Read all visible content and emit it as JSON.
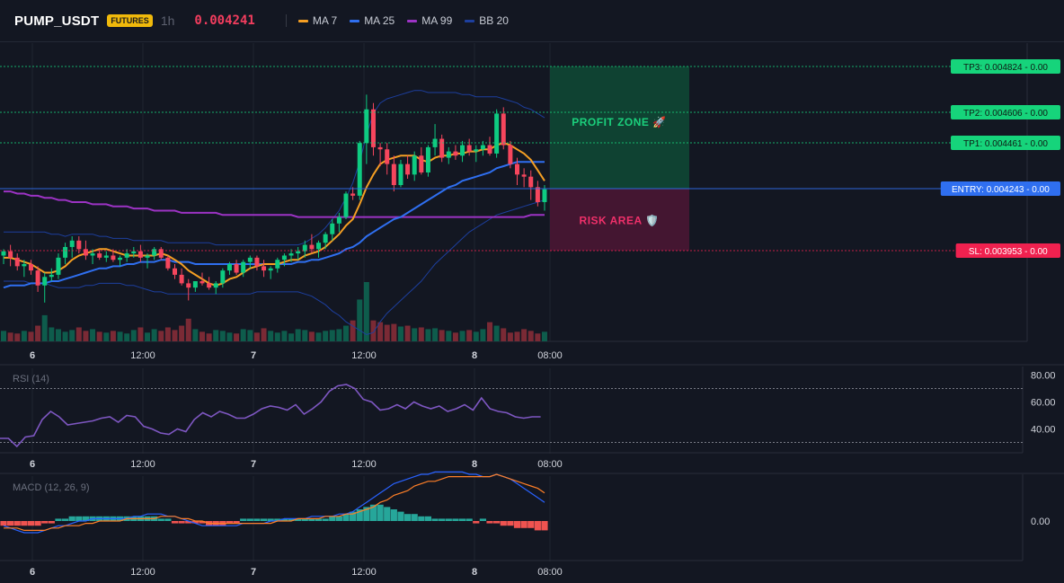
{
  "header": {
    "symbol": "PUMP_USDT",
    "badge": "FUTURES",
    "timeframe": "1h",
    "price": "0.004241",
    "legend": [
      {
        "label": "MA 7",
        "color": "#f59f23"
      },
      {
        "label": "MA 25",
        "color": "#2f6ff0"
      },
      {
        "label": "MA 99",
        "color": "#9c33c4"
      },
      {
        "label": "BB 20",
        "color": "#1d3f9e"
      }
    ]
  },
  "colors": {
    "background": "#131722",
    "up": "#0ecb81",
    "down": "#f6465d",
    "up_volume": "#0e5c4c",
    "down_volume": "#7a2a35",
    "rsi": "#7e57c2",
    "macd": "#2962ff",
    "signal": "#ff7f27",
    "hist_up": "#26a69a",
    "hist_down": "#ef5350",
    "tp": "#16d47b",
    "entry": "#2f6ff0",
    "sl": "#f0214f"
  },
  "levels": [
    {
      "id": "tp3",
      "label": "TP3: 0.004824 - 0.00",
      "value": 0.004824,
      "kind": "tp"
    },
    {
      "id": "tp2",
      "label": "TP2: 0.004606 - 0.00",
      "value": 0.004606,
      "kind": "tp"
    },
    {
      "id": "tp1",
      "label": "TP1: 0.004461 - 0.00",
      "value": 0.004461,
      "kind": "tp"
    },
    {
      "id": "entry",
      "label": "ENTRY: 0.004243 - 0.00",
      "value": 0.004243,
      "kind": "entry"
    },
    {
      "id": "sl",
      "label": "SL: 0.003953 - 0.00",
      "value": 0.003953,
      "kind": "sl"
    }
  ],
  "zones": {
    "profit_label": "PROFIT ZONE 🚀",
    "risk_label": "RISK AREA 🛡️"
  },
  "time_axis": [
    "6",
    "12:00",
    "7",
    "12:00",
    "8",
    "08:00"
  ],
  "rsi": {
    "title": "RSI (14)",
    "ticks": [
      "80.00",
      "60.00",
      "40.00"
    ],
    "tick_values": [
      80,
      60,
      40
    ],
    "upper": 70,
    "lower": 30,
    "values": [
      33,
      33,
      27,
      34,
      35,
      47,
      53,
      49,
      43,
      44,
      45,
      46,
      48,
      49,
      45,
      50,
      49,
      42,
      40,
      37,
      36,
      40,
      38,
      47,
      52,
      49,
      53,
      51,
      48,
      48,
      51,
      55,
      57,
      56,
      54,
      58,
      51,
      55,
      60,
      68,
      72,
      73,
      70,
      62,
      60,
      54,
      55,
      58,
      55,
      60,
      57,
      55,
      57,
      53,
      55,
      58,
      54,
      63,
      55,
      53,
      52,
      49,
      48,
      49,
      49
    ]
  },
  "macd": {
    "title": "MACD (12, 26, 9)",
    "tick": "0.00"
  },
  "chart_data": {
    "type": "candlestick",
    "symbol": "PUMP_USDT",
    "interval": "1h",
    "last_price": 0.004241,
    "candles": [
      [
        0.00393,
        0.00396,
        0.00389,
        0.00395
      ],
      [
        0.00395,
        0.00398,
        0.00388,
        0.00392
      ],
      [
        0.00392,
        0.00394,
        0.00386,
        0.00388
      ],
      [
        0.00388,
        0.00391,
        0.00383,
        0.00389
      ],
      [
        0.00389,
        0.00391,
        0.00384,
        0.00386
      ],
      [
        0.00386,
        0.00388,
        0.00376,
        0.00379
      ],
      [
        0.00379,
        0.00385,
        0.00371,
        0.00383
      ],
      [
        0.00383,
        0.00387,
        0.00381,
        0.00384
      ],
      [
        0.00384,
        0.00394,
        0.00382,
        0.00392
      ],
      [
        0.00392,
        0.00399,
        0.00389,
        0.00397
      ],
      [
        0.00397,
        0.00402,
        0.00392,
        0.004
      ],
      [
        0.004,
        0.00402,
        0.00394,
        0.00396
      ],
      [
        0.00396,
        0.004,
        0.00391,
        0.00393
      ],
      [
        0.00393,
        0.00396,
        0.00389,
        0.00394
      ],
      [
        0.00394,
        0.00396,
        0.00391,
        0.00392
      ],
      [
        0.00392,
        0.00395,
        0.0039,
        0.00393
      ],
      [
        0.00393,
        0.00396,
        0.0039,
        0.00391
      ],
      [
        0.00391,
        0.00393,
        0.00388,
        0.00392
      ],
      [
        0.00392,
        0.00396,
        0.0039,
        0.00394
      ],
      [
        0.00394,
        0.00397,
        0.00392,
        0.00395
      ],
      [
        0.00395,
        0.00398,
        0.0039,
        0.00392
      ],
      [
        0.00392,
        0.00394,
        0.00387,
        0.00393
      ],
      [
        0.00393,
        0.00397,
        0.00391,
        0.00396
      ],
      [
        0.00396,
        0.00397,
        0.00391,
        0.00392
      ],
      [
        0.00392,
        0.00393,
        0.00386,
        0.00387
      ],
      [
        0.00387,
        0.00389,
        0.00382,
        0.00384
      ],
      [
        0.00384,
        0.00387,
        0.00379,
        0.0038
      ],
      [
        0.0038,
        0.00382,
        0.00372,
        0.00378
      ],
      [
        0.00378,
        0.00381,
        0.00376,
        0.00381
      ],
      [
        0.00381,
        0.00385,
        0.00379,
        0.0038
      ],
      [
        0.0038,
        0.00383,
        0.00377,
        0.00378
      ],
      [
        0.00378,
        0.00381,
        0.00375,
        0.0038
      ],
      [
        0.0038,
        0.00387,
        0.00378,
        0.00386
      ],
      [
        0.00386,
        0.0039,
        0.00384,
        0.00389
      ],
      [
        0.00389,
        0.00391,
        0.00384,
        0.00385
      ],
      [
        0.00385,
        0.00391,
        0.00383,
        0.0039
      ],
      [
        0.0039,
        0.00393,
        0.00387,
        0.00392
      ],
      [
        0.00392,
        0.00393,
        0.00386,
        0.00388
      ],
      [
        0.00388,
        0.00391,
        0.00383,
        0.00386
      ],
      [
        0.00386,
        0.00388,
        0.00382,
        0.00387
      ],
      [
        0.00387,
        0.00392,
        0.00385,
        0.00391
      ],
      [
        0.00391,
        0.00394,
        0.00388,
        0.00393
      ],
      [
        0.00393,
        0.00396,
        0.0039,
        0.00394
      ],
      [
        0.00394,
        0.00397,
        0.00391,
        0.00395
      ],
      [
        0.00395,
        0.004,
        0.00392,
        0.00398
      ],
      [
        0.00398,
        0.00403,
        0.00394,
        0.00396
      ],
      [
        0.00396,
        0.004,
        0.00392,
        0.00399
      ],
      [
        0.00399,
        0.00404,
        0.00396,
        0.00403
      ],
      [
        0.00403,
        0.0041,
        0.004,
        0.00408
      ],
      [
        0.00408,
        0.00413,
        0.00404,
        0.00411
      ],
      [
        0.00411,
        0.00423,
        0.0041,
        0.00422
      ],
      [
        0.00422,
        0.00425,
        0.00419,
        0.00421
      ],
      [
        0.00421,
        0.00447,
        0.00419,
        0.00446
      ],
      [
        0.00446,
        0.00469,
        0.00436,
        0.00462
      ],
      [
        0.00462,
        0.00465,
        0.0044,
        0.00444
      ],
      [
        0.00444,
        0.00446,
        0.00435,
        0.00443
      ],
      [
        0.00443,
        0.00446,
        0.00431,
        0.00436
      ],
      [
        0.00436,
        0.0044,
        0.00423,
        0.00426
      ],
      [
        0.00426,
        0.00438,
        0.00425,
        0.00436
      ],
      [
        0.00436,
        0.0044,
        0.00429,
        0.00431
      ],
      [
        0.00431,
        0.00442,
        0.00428,
        0.0044
      ],
      [
        0.0044,
        0.00444,
        0.00431,
        0.00432
      ],
      [
        0.00432,
        0.00445,
        0.0043,
        0.00444
      ],
      [
        0.00444,
        0.00455,
        0.0044,
        0.00448
      ],
      [
        0.00448,
        0.0045,
        0.00437,
        0.00439
      ],
      [
        0.00439,
        0.00444,
        0.00436,
        0.00442
      ],
      [
        0.00442,
        0.00445,
        0.00438,
        0.0044
      ],
      [
        0.0044,
        0.00447,
        0.00437,
        0.00445
      ],
      [
        0.00445,
        0.00448,
        0.0044,
        0.00442
      ],
      [
        0.00442,
        0.00445,
        0.00437,
        0.00443
      ],
      [
        0.00443,
        0.00447,
        0.0044,
        0.00445
      ],
      [
        0.00445,
        0.00449,
        0.0044,
        0.00441
      ],
      [
        0.00441,
        0.00462,
        0.00439,
        0.0046
      ],
      [
        0.0046,
        0.00463,
        0.00443,
        0.00445
      ],
      [
        0.00445,
        0.00447,
        0.00434,
        0.00436
      ],
      [
        0.00436,
        0.00439,
        0.00426,
        0.00431
      ],
      [
        0.00431,
        0.00434,
        0.00425,
        0.0043
      ],
      [
        0.0043,
        0.00433,
        0.00419,
        0.00425
      ],
      [
        0.00425,
        0.00428,
        0.00416,
        0.00418
      ],
      [
        0.00418,
        0.00426,
        0.00414,
        0.00424
      ]
    ],
    "volume": [
      12,
      10,
      9,
      12,
      11,
      18,
      30,
      16,
      14,
      11,
      13,
      16,
      12,
      14,
      11,
      10,
      12,
      11,
      9,
      13,
      16,
      10,
      14,
      12,
      16,
      13,
      18,
      26,
      14,
      11,
      9,
      13,
      12,
      10,
      9,
      14,
      13,
      10,
      15,
      12,
      10,
      12,
      9,
      14,
      13,
      11,
      10,
      12,
      13,
      14,
      18,
      24,
      48,
      68,
      24,
      22,
      19,
      20,
      17,
      18,
      15,
      16,
      14,
      15,
      13,
      12,
      10,
      12,
      13,
      11,
      14,
      22,
      18,
      15,
      10,
      11,
      14,
      12,
      9,
      11
    ],
    "ma7": [
      0.00392,
      0.00392,
      0.00391,
      0.0039,
      0.00389,
      0.00387,
      0.00385,
      0.00385,
      0.00386,
      0.00388,
      0.00391,
      0.00393,
      0.00394,
      0.00395,
      0.00396,
      0.00396,
      0.00395,
      0.00394,
      0.00393,
      0.00393,
      0.00393,
      0.00393,
      0.00393,
      0.00394,
      0.00393,
      0.00391,
      0.00389,
      0.00386,
      0.00384,
      0.00382,
      0.0038,
      0.00379,
      0.0038,
      0.00382,
      0.00383,
      0.00385,
      0.00387,
      0.00388,
      0.00389,
      0.00389,
      0.00389,
      0.0039,
      0.00391,
      0.00391,
      0.00393,
      0.00394,
      0.00395,
      0.00397,
      0.004,
      0.00403,
      0.00407,
      0.0041,
      0.00417,
      0.00425,
      0.00431,
      0.00436,
      0.00438,
      0.00439,
      0.0044,
      0.0044,
      0.0044,
      0.00438,
      0.00437,
      0.00439,
      0.0044,
      0.0044,
      0.00441,
      0.00441,
      0.00442,
      0.00442,
      0.00443,
      0.00443,
      0.00445,
      0.00446,
      0.00445,
      0.00443,
      0.00441,
      0.00438,
      0.00433,
      0.00428
    ],
    "ma25": [
      0.00378,
      0.00379,
      0.00379,
      0.00379,
      0.0038,
      0.0038,
      0.0038,
      0.00381,
      0.00381,
      0.00382,
      0.00383,
      0.00384,
      0.00385,
      0.00386,
      0.00387,
      0.00387,
      0.00388,
      0.00388,
      0.00389,
      0.00389,
      0.0039,
      0.0039,
      0.0039,
      0.00391,
      0.00391,
      0.0039,
      0.0039,
      0.0039,
      0.00389,
      0.00389,
      0.00389,
      0.00389,
      0.00389,
      0.00389,
      0.00389,
      0.00389,
      0.00389,
      0.00389,
      0.00389,
      0.00389,
      0.00389,
      0.00389,
      0.00389,
      0.0039,
      0.0039,
      0.00391,
      0.00391,
      0.00392,
      0.00393,
      0.00394,
      0.00396,
      0.00397,
      0.00399,
      0.00402,
      0.00404,
      0.00406,
      0.00408,
      0.0041,
      0.00411,
      0.00413,
      0.00415,
      0.00417,
      0.00419,
      0.00421,
      0.00423,
      0.00425,
      0.00426,
      0.00428,
      0.00429,
      0.0043,
      0.00431,
      0.00432,
      0.00434,
      0.00435,
      0.00436,
      0.00437,
      0.00437,
      0.00437,
      0.00437,
      0.00437
    ],
    "ma99": [
      0.00423,
      0.00423,
      0.00422,
      0.00422,
      0.00421,
      0.00421,
      0.0042,
      0.0042,
      0.00419,
      0.00419,
      0.00418,
      0.00418,
      0.00418,
      0.00417,
      0.00417,
      0.00417,
      0.00416,
      0.00416,
      0.00416,
      0.00415,
      0.00415,
      0.00415,
      0.00414,
      0.00414,
      0.00414,
      0.00414,
      0.00413,
      0.00413,
      0.00413,
      0.00413,
      0.00413,
      0.00413,
      0.00412,
      0.00412,
      0.00412,
      0.00412,
      0.00412,
      0.00412,
      0.00412,
      0.00412,
      0.00412,
      0.00412,
      0.00412,
      0.00411,
      0.00411,
      0.00411,
      0.00411,
      0.00411,
      0.00411,
      0.00411,
      0.00411,
      0.00411,
      0.00411,
      0.00411,
      0.00411,
      0.00411,
      0.00411,
      0.00411,
      0.00411,
      0.00411,
      0.00411,
      0.00411,
      0.00411,
      0.00411,
      0.00411,
      0.00411,
      0.00411,
      0.00411,
      0.00411,
      0.00411,
      0.00411,
      0.00411,
      0.00411,
      0.00411,
      0.00411,
      0.00411,
      0.00411,
      0.00412,
      0.00412,
      0.00412
    ],
    "bb_upper": [
      0.00404,
      0.00404,
      0.00404,
      0.00404,
      0.00404,
      0.00404,
      0.00404,
      0.00403,
      0.00403,
      0.00402,
      0.00403,
      0.00403,
      0.00403,
      0.00403,
      0.00402,
      0.00402,
      0.00401,
      0.00401,
      0.00401,
      0.004,
      0.004,
      0.004,
      0.004,
      0.004,
      0.00399,
      0.00399,
      0.00399,
      0.00399,
      0.00399,
      0.00399,
      0.00399,
      0.00398,
      0.00398,
      0.00398,
      0.00398,
      0.00398,
      0.00398,
      0.00398,
      0.00398,
      0.00398,
      0.00398,
      0.00398,
      0.00398,
      0.00398,
      0.00399,
      0.00401,
      0.00403,
      0.00406,
      0.0041,
      0.00414,
      0.0042,
      0.00427,
      0.00437,
      0.0045,
      0.0046,
      0.00465,
      0.00467,
      0.00468,
      0.00469,
      0.0047,
      0.00471,
      0.00471,
      0.0047,
      0.0047,
      0.0047,
      0.0047,
      0.0047,
      0.00469,
      0.00469,
      0.00468,
      0.00468,
      0.00468,
      0.00468,
      0.00467,
      0.00466,
      0.00465,
      0.00463,
      0.00462,
      0.0046,
      0.00458
    ],
    "bb_lower": [
      0.00381,
      0.00381,
      0.00381,
      0.00381,
      0.0038,
      0.0038,
      0.0038,
      0.00379,
      0.00378,
      0.00378,
      0.00378,
      0.00378,
      0.00379,
      0.00379,
      0.0038,
      0.0038,
      0.0038,
      0.0038,
      0.00379,
      0.00379,
      0.00378,
      0.00377,
      0.00376,
      0.00376,
      0.00375,
      0.00375,
      0.00375,
      0.00375,
      0.00375,
      0.00375,
      0.00375,
      0.00375,
      0.00375,
      0.00375,
      0.00375,
      0.00375,
      0.00375,
      0.00376,
      0.00376,
      0.00376,
      0.00376,
      0.00376,
      0.00376,
      0.00376,
      0.00375,
      0.00374,
      0.00372,
      0.0037,
      0.00367,
      0.00365,
      0.00362,
      0.0036,
      0.00358,
      0.00356,
      0.00357,
      0.00362,
      0.00366,
      0.00369,
      0.00372,
      0.00375,
      0.00378,
      0.00381,
      0.00385,
      0.00389,
      0.00392,
      0.00395,
      0.00398,
      0.00401,
      0.00404,
      0.00406,
      0.00408,
      0.0041,
      0.00412,
      0.00413,
      0.00414,
      0.00415,
      0.00416,
      0.00417,
      0.00418,
      0.00419
    ],
    "macd_line": [
      -2,
      -3,
      -4,
      -5,
      -5,
      -5,
      -4,
      -3,
      -2,
      -2,
      -1,
      0,
      0,
      1,
      1,
      1,
      1,
      1,
      1,
      2,
      2,
      3,
      3,
      3,
      2,
      2,
      1,
      0,
      -1,
      -2,
      -2,
      -2,
      -2,
      -2,
      -2,
      -1,
      -1,
      -1,
      -1,
      0,
      0,
      1,
      1,
      1,
      1,
      2,
      2,
      2,
      2,
      3,
      3,
      4,
      6,
      8,
      10,
      12,
      14,
      16,
      17,
      18,
      19,
      20,
      20,
      21,
      21,
      21,
      21,
      21,
      20,
      20,
      19,
      19,
      20,
      19,
      18,
      16,
      14,
      12,
      10,
      8
    ],
    "signal_line": [
      -3,
      -3,
      -3,
      -4,
      -4,
      -4,
      -4,
      -3,
      -3,
      -2,
      -2,
      -2,
      -1,
      -1,
      0,
      0,
      0,
      0,
      1,
      1,
      1,
      1,
      1,
      2,
      2,
      2,
      1,
      1,
      0,
      0,
      -1,
      -1,
      -1,
      -1,
      -1,
      -1,
      -1,
      -1,
      -1,
      -1,
      0,
      0,
      0,
      1,
      1,
      1,
      1,
      2,
      2,
      2,
      3,
      3,
      4,
      5,
      6,
      8,
      9,
      11,
      12,
      13,
      15,
      16,
      17,
      17,
      18,
      19,
      19,
      19,
      19,
      19,
      19,
      19,
      20,
      19,
      18,
      17,
      16,
      15,
      14,
      12
    ],
    "macd_hist": [
      -2,
      -2,
      -2,
      -2,
      -2,
      -2,
      -1,
      -1,
      1,
      1,
      2,
      2,
      2,
      2,
      2,
      2,
      2,
      2,
      2,
      2,
      2,
      2,
      2,
      1,
      1,
      -1,
      -1,
      -1,
      -1,
      -1,
      -2,
      -2,
      -2,
      -1,
      -1,
      1,
      1,
      1,
      1,
      1,
      1,
      1,
      1,
      1,
      1,
      1,
      1,
      1,
      2,
      2,
      3,
      4,
      5,
      6,
      7,
      7,
      6,
      5,
      4,
      3,
      3,
      2,
      2,
      1,
      1,
      1,
      1,
      1,
      1,
      -1,
      1,
      -1,
      -1,
      -2,
      -2,
      -3,
      -3,
      -3,
      -4,
      -4
    ]
  }
}
